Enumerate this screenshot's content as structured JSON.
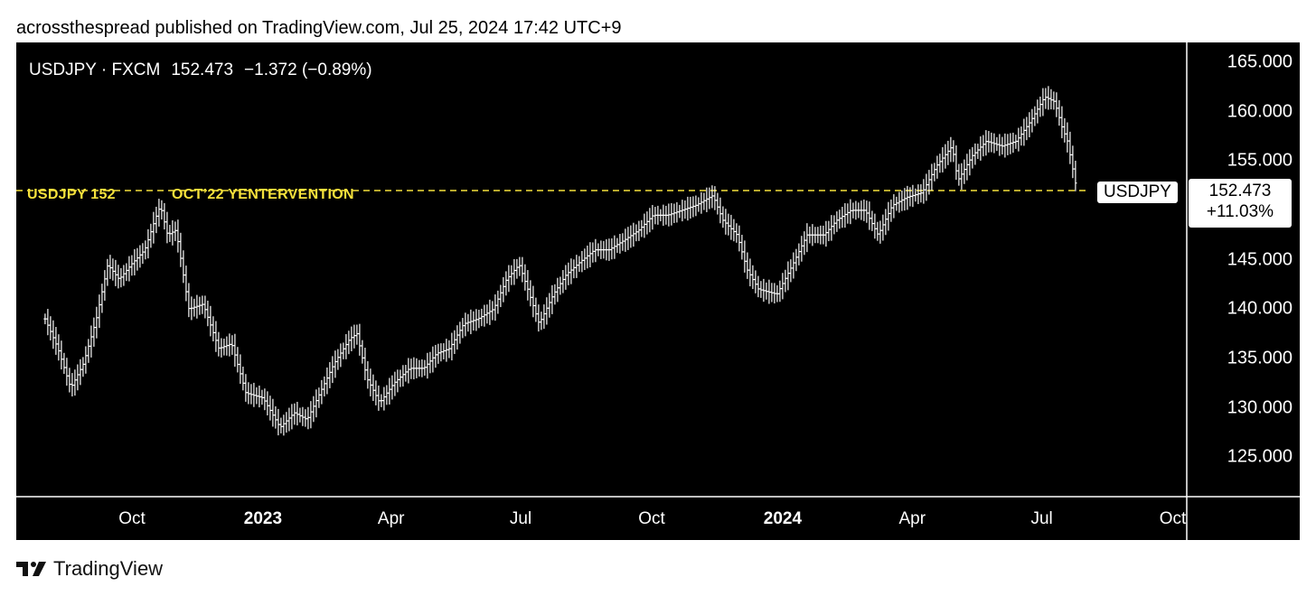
{
  "attribution": "acrossthespread published on TradingView.com, Jul 25, 2024 17:42 UTC+9",
  "symbol_header": {
    "symbol": "USDJPY · FXCM",
    "last": "152.473",
    "change": "−1.372 (−0.89%)"
  },
  "reference_labels": {
    "left": "USDJPY 152",
    "mid": "OCT’22 YENTERVENTION",
    "badge": "USDJPY"
  },
  "last_box": {
    "price": "152.473",
    "pct": "+11.03%"
  },
  "footer": {
    "brand": "TradingView"
  },
  "colors": {
    "background": "#000000",
    "bars": "#ffffff",
    "reference_line": "#f5e13c",
    "page": "#ffffff"
  },
  "chart_data": {
    "type": "ohlc-bar",
    "title": "USDJPY · FXCM",
    "y_axis_labels": [
      "165.000",
      "160.000",
      "155.000",
      "145.000",
      "140.000",
      "135.000",
      "130.000",
      "125.000"
    ],
    "ylim": [
      121,
      167
    ],
    "x_axis_labels": [
      {
        "text": "Oct",
        "date": "2022-10-01",
        "bold": false
      },
      {
        "text": "2023",
        "date": "2023-01-01",
        "bold": true
      },
      {
        "text": "Apr",
        "date": "2023-04-01",
        "bold": false
      },
      {
        "text": "Jul",
        "date": "2023-07-01",
        "bold": false
      },
      {
        "text": "Oct",
        "date": "2023-10-01",
        "bold": false
      },
      {
        "text": "2024",
        "date": "2024-01-01",
        "bold": true
      },
      {
        "text": "Apr",
        "date": "2024-04-01",
        "bold": false
      },
      {
        "text": "Jul",
        "date": "2024-07-01",
        "bold": false
      },
      {
        "text": "Oct",
        "date": "2024-10-01",
        "bold": false
      }
    ],
    "reference_line": 152,
    "series": [
      {
        "name": "USDJPY",
        "points": [
          [
            "2022-08-01",
            139.0
          ],
          [
            "2022-08-10",
            136.0
          ],
          [
            "2022-08-19",
            132.0
          ],
          [
            "2022-08-28",
            134.5
          ],
          [
            "2022-09-06",
            139.0
          ],
          [
            "2022-09-14",
            144.5
          ],
          [
            "2022-09-22",
            143.0
          ],
          [
            "2022-10-01",
            144.6
          ],
          [
            "2022-10-10",
            146.0
          ],
          [
            "2022-10-17",
            149.0
          ],
          [
            "2022-10-21",
            150.5
          ],
          [
            "2022-10-26",
            147.5
          ],
          [
            "2022-11-01",
            148.0
          ],
          [
            "2022-11-10",
            140.0
          ],
          [
            "2022-11-20",
            140.5
          ],
          [
            "2022-12-01",
            136.0
          ],
          [
            "2022-12-10",
            136.5
          ],
          [
            "2022-12-20",
            131.5
          ],
          [
            "2023-01-01",
            131.0
          ],
          [
            "2023-01-13",
            128.0
          ],
          [
            "2023-01-23",
            129.5
          ],
          [
            "2023-02-01",
            128.8
          ],
          [
            "2023-02-10",
            131.5
          ],
          [
            "2023-02-20",
            134.5
          ],
          [
            "2023-03-03",
            137.0
          ],
          [
            "2023-03-08",
            137.5
          ],
          [
            "2023-03-15",
            133.0
          ],
          [
            "2023-03-24",
            130.5
          ],
          [
            "2023-04-03",
            132.5
          ],
          [
            "2023-04-14",
            134.0
          ],
          [
            "2023-04-24",
            134.0
          ],
          [
            "2023-05-03",
            135.5
          ],
          [
            "2023-05-12",
            136.0
          ],
          [
            "2023-05-22",
            138.5
          ],
          [
            "2023-06-01",
            139.0
          ],
          [
            "2023-06-12",
            140.0
          ],
          [
            "2023-06-21",
            143.0
          ],
          [
            "2023-06-30",
            144.5
          ],
          [
            "2023-07-06",
            142.0
          ],
          [
            "2023-07-14",
            138.5
          ],
          [
            "2023-07-24",
            141.5
          ],
          [
            "2023-08-02",
            143.5
          ],
          [
            "2023-08-12",
            144.8
          ],
          [
            "2023-08-22",
            146.0
          ],
          [
            "2023-09-01",
            146.0
          ],
          [
            "2023-09-12",
            147.0
          ],
          [
            "2023-09-22",
            148.0
          ],
          [
            "2023-10-02",
            149.5
          ],
          [
            "2023-10-12",
            149.5
          ],
          [
            "2023-10-22",
            150.0
          ],
          [
            "2023-11-01",
            150.5
          ],
          [
            "2023-11-13",
            151.5
          ],
          [
            "2023-11-20",
            149.0
          ],
          [
            "2023-11-30",
            147.5
          ],
          [
            "2023-12-07",
            144.0
          ],
          [
            "2023-12-15",
            142.0
          ],
          [
            "2023-12-28",
            141.5
          ],
          [
            "2024-01-08",
            144.5
          ],
          [
            "2024-01-18",
            147.5
          ],
          [
            "2024-01-30",
            147.5
          ],
          [
            "2024-02-08",
            149.0
          ],
          [
            "2024-02-18",
            150.0
          ],
          [
            "2024-02-28",
            150.0
          ],
          [
            "2024-03-08",
            147.5
          ],
          [
            "2024-03-18",
            150.5
          ],
          [
            "2024-03-28",
            151.3
          ],
          [
            "2024-04-08",
            151.8
          ],
          [
            "2024-04-18",
            154.5
          ],
          [
            "2024-04-29",
            156.5
          ],
          [
            "2024-05-03",
            153.0
          ],
          [
            "2024-05-13",
            155.5
          ],
          [
            "2024-05-23",
            157.0
          ],
          [
            "2024-06-03",
            156.5
          ],
          [
            "2024-06-13",
            157.0
          ],
          [
            "2024-06-23",
            159.0
          ],
          [
            "2024-07-03",
            161.5
          ],
          [
            "2024-07-10",
            161.0
          ],
          [
            "2024-07-15",
            158.5
          ],
          [
            "2024-07-19",
            157.0
          ],
          [
            "2024-07-25",
            152.5
          ]
        ]
      }
    ]
  }
}
